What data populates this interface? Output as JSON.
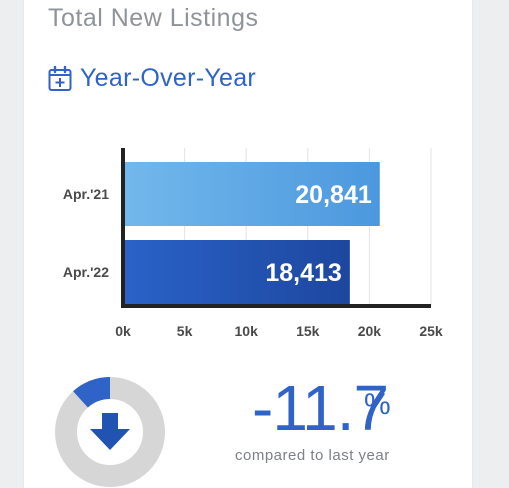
{
  "card": {
    "title": "Total New Listings"
  },
  "section": {
    "label": "Year-Over-Year",
    "icon": "calendar-plus-icon"
  },
  "chart_data": {
    "type": "bar",
    "orientation": "horizontal",
    "categories": [
      "Apr.'21",
      "Apr.'22"
    ],
    "values": [
      20841,
      18413
    ],
    "value_labels": [
      "20,841",
      "18,413"
    ],
    "xlim": [
      0,
      25000
    ],
    "xticks": [
      0,
      5000,
      10000,
      15000,
      20000,
      25000
    ],
    "xtick_labels": [
      "0k",
      "5k",
      "10k",
      "15k",
      "20k",
      "25k"
    ],
    "grid": true,
    "bar_colors": [
      "#62abe6",
      "#2153b3"
    ]
  },
  "change": {
    "value": "-11.7",
    "unit": "%",
    "caption": "compared to last year",
    "direction": "down",
    "gauge_fraction": 0.117,
    "icon": "arrow-down-icon"
  },
  "colors": {
    "accent": "#2f63c7",
    "gauge_track": "#d6d6d6",
    "title_gray": "#8f9499"
  }
}
